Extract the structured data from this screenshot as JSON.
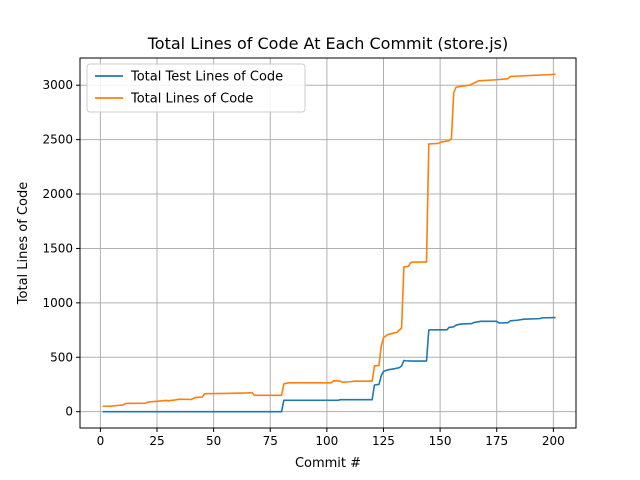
{
  "chart_data": {
    "type": "line",
    "title": "Total Lines of Code At Each Commit (store.js)",
    "xlabel": "Commit #",
    "ylabel": "Total Lines of Code",
    "xlim": [
      -9,
      210
    ],
    "ylim": [
      -150,
      3250
    ],
    "xticks": [
      0,
      25,
      50,
      75,
      100,
      125,
      150,
      175,
      200
    ],
    "yticks": [
      0,
      500,
      1000,
      1500,
      2000,
      2500,
      3000
    ],
    "grid": true,
    "legend_position": "upper-left",
    "series": [
      {
        "name": "Total Test Lines of Code",
        "color": "#1f77b4",
        "points": [
          [
            1,
            0
          ],
          [
            80,
            0
          ],
          [
            81,
            105
          ],
          [
            105,
            105
          ],
          [
            106,
            110
          ],
          [
            120,
            110
          ],
          [
            121,
            245
          ],
          [
            123,
            250
          ],
          [
            124,
            330
          ],
          [
            125,
            370
          ],
          [
            127,
            385
          ],
          [
            130,
            395
          ],
          [
            132,
            405
          ],
          [
            133,
            420
          ],
          [
            134,
            470
          ],
          [
            135,
            468
          ],
          [
            137,
            465
          ],
          [
            144,
            465
          ],
          [
            145,
            750
          ],
          [
            146,
            752
          ],
          [
            153,
            752
          ],
          [
            154,
            775
          ],
          [
            156,
            780
          ],
          [
            157,
            795
          ],
          [
            159,
            805
          ],
          [
            164,
            810
          ],
          [
            165,
            820
          ],
          [
            168,
            830
          ],
          [
            175,
            830
          ],
          [
            176,
            815
          ],
          [
            180,
            818
          ],
          [
            181,
            835
          ],
          [
            184,
            840
          ],
          [
            187,
            850
          ],
          [
            194,
            855
          ],
          [
            195,
            862
          ],
          [
            201,
            865
          ]
        ]
      },
      {
        "name": "Total Lines of Code",
        "color": "#ff7f0e",
        "points": [
          [
            1,
            50
          ],
          [
            5,
            52
          ],
          [
            8,
            58
          ],
          [
            10,
            62
          ],
          [
            11,
            75
          ],
          [
            20,
            78
          ],
          [
            21,
            88
          ],
          [
            25,
            95
          ],
          [
            29,
            103
          ],
          [
            30,
            100
          ],
          [
            33,
            108
          ],
          [
            35,
            115
          ],
          [
            40,
            112
          ],
          [
            42,
            130
          ],
          [
            45,
            135
          ],
          [
            46,
            165
          ],
          [
            55,
            168
          ],
          [
            60,
            170
          ],
          [
            65,
            172
          ],
          [
            67,
            175
          ],
          [
            68,
            150
          ],
          [
            80,
            150
          ],
          [
            81,
            255
          ],
          [
            83,
            265
          ],
          [
            95,
            265
          ],
          [
            102,
            265
          ],
          [
            103,
            285
          ],
          [
            106,
            280
          ],
          [
            107,
            270
          ],
          [
            110,
            275
          ],
          [
            112,
            280
          ],
          [
            120,
            280
          ],
          [
            121,
            420
          ],
          [
            123,
            425
          ],
          [
            124,
            600
          ],
          [
            125,
            680
          ],
          [
            127,
            710
          ],
          [
            129,
            720
          ],
          [
            131,
            730
          ],
          [
            133,
            770
          ],
          [
            134,
            1330
          ],
          [
            136,
            1335
          ],
          [
            137,
            1370
          ],
          [
            138,
            1375
          ],
          [
            144,
            1375
          ],
          [
            145,
            2460
          ],
          [
            149,
            2465
          ],
          [
            151,
            2480
          ],
          [
            154,
            2490
          ],
          [
            155,
            2510
          ],
          [
            156,
            2930
          ],
          [
            157,
            2980
          ],
          [
            159,
            2990
          ],
          [
            163,
            3000
          ],
          [
            165,
            3020
          ],
          [
            167,
            3040
          ],
          [
            175,
            3050
          ],
          [
            180,
            3060
          ],
          [
            181,
            3080
          ],
          [
            190,
            3090
          ],
          [
            196,
            3095
          ],
          [
            201,
            3100
          ]
        ]
      }
    ]
  }
}
